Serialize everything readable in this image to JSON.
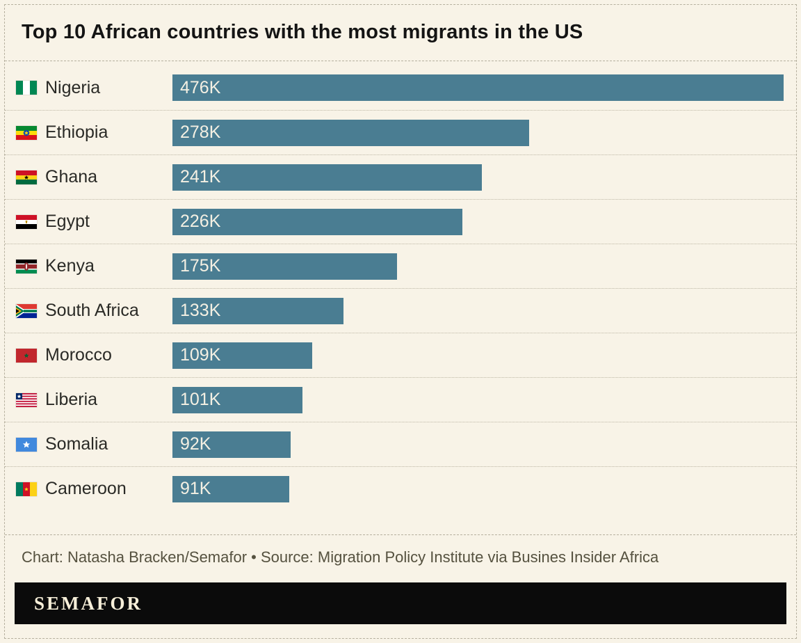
{
  "title": "Top 10 African countries with the most migrants in the US",
  "chart_data": {
    "type": "bar",
    "orientation": "horizontal",
    "title": "Top 10 African countries with the most migrants in the US",
    "unit": "thousands of migrants",
    "categories": [
      "Nigeria",
      "Ethiopia",
      "Ghana",
      "Egypt",
      "Kenya",
      "South Africa",
      "Morocco",
      "Liberia",
      "Somalia",
      "Cameroon"
    ],
    "values": [
      476,
      278,
      241,
      226,
      175,
      133,
      109,
      101,
      92,
      91
    ],
    "value_labels": [
      "476K",
      "278K",
      "241K",
      "226K",
      "175K",
      "133K",
      "109K",
      "101K",
      "92K",
      "91K"
    ],
    "flags": [
      "flag-nigeria",
      "flag-ethiopia",
      "flag-ghana",
      "flag-egypt",
      "flag-kenya",
      "flag-south-africa",
      "flag-morocco",
      "flag-liberia",
      "flag-somalia",
      "flag-cameroon"
    ],
    "xlim": [
      0,
      476
    ],
    "legend": false,
    "gridlines": false
  },
  "footer": {
    "credit": "Chart: Natasha Bracken/Semafor • Source: Migration Policy Institute via Busines Insider Africa",
    "brand": "SEMAFOR"
  },
  "colors": {
    "bar": "#4a7d92",
    "background": "#f8f3e7",
    "value_text": "#f4f0e3",
    "brand_bar": "#0b0b0b"
  }
}
